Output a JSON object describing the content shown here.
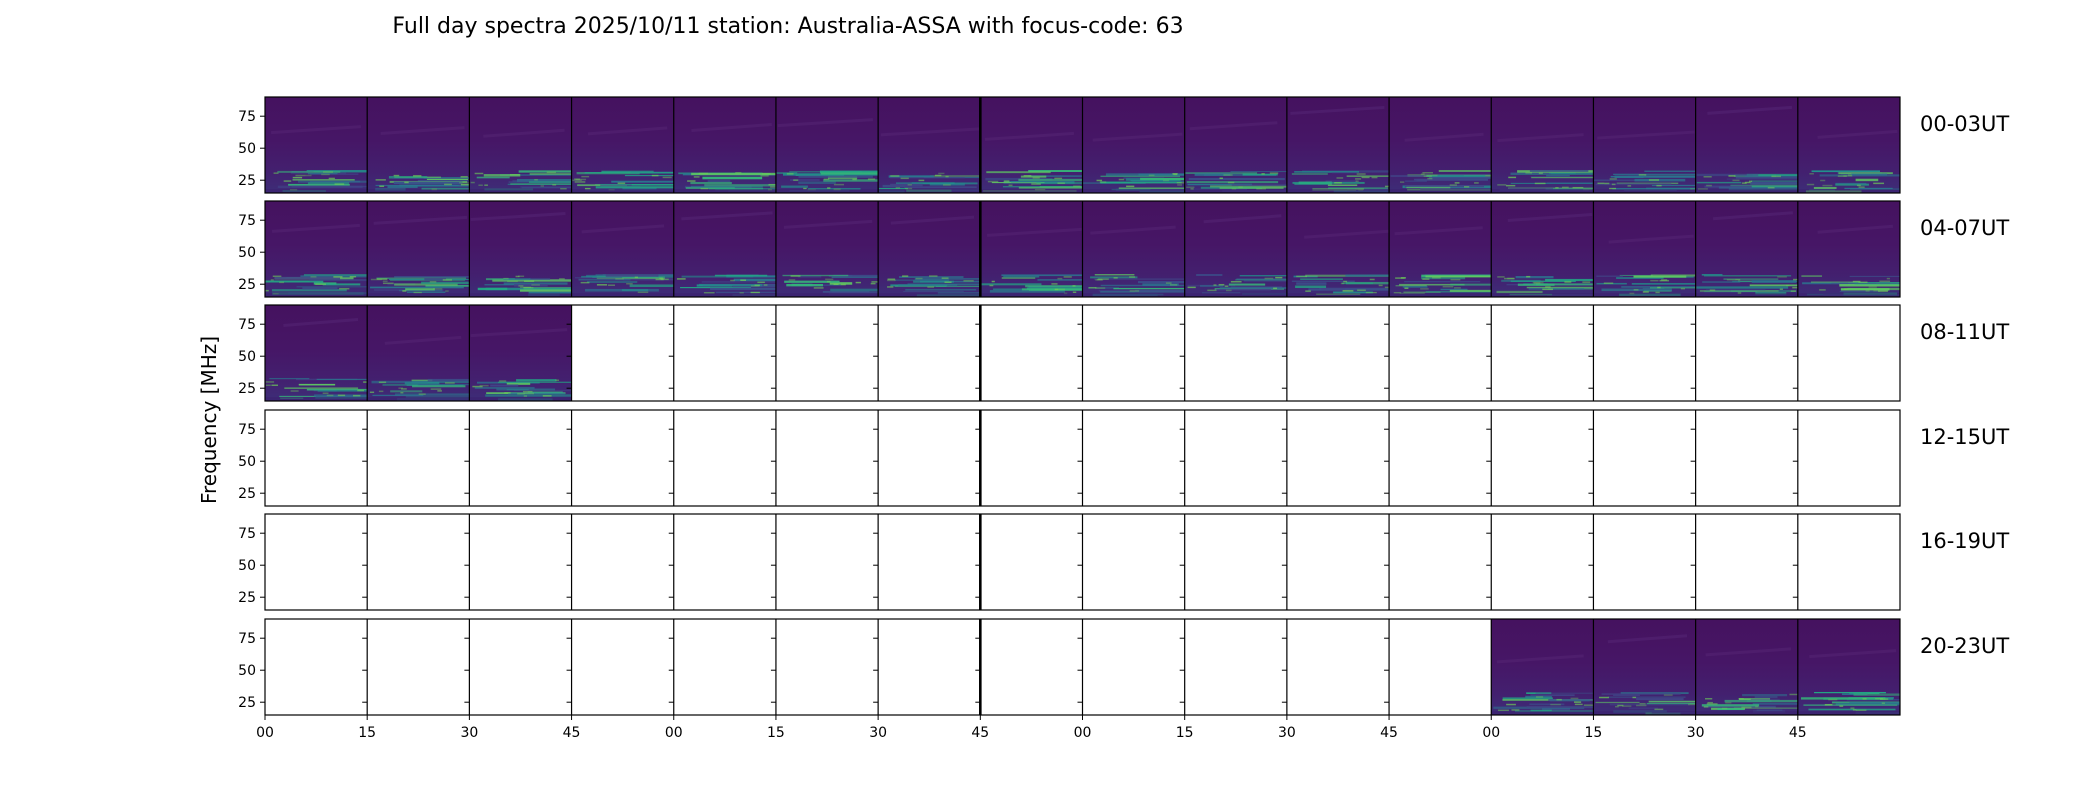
{
  "chart_data": {
    "type": "heatmap",
    "title": "Full day spectra 2025/10/11 station: Australia-ASSA with focus-code: 63",
    "ylabel": "Frequency [MHz]",
    "xlabel": "",
    "y_ticks": [
      "75",
      "50",
      "25"
    ],
    "y_tick_values": [
      75,
      50,
      25
    ],
    "ylim": [
      15,
      90
    ],
    "x_tick_labels": [
      "00",
      "15",
      "30",
      "45",
      "00",
      "15",
      "30",
      "45",
      "00",
      "15",
      "30",
      "45",
      "00",
      "15",
      "30",
      "45"
    ],
    "colormap": "viridis",
    "panels_per_row": 16,
    "panel_minutes": 15,
    "rows": [
      {
        "label": "00-03UT",
        "data_present": [
          true,
          true,
          true,
          true,
          true,
          true,
          true,
          true,
          true,
          true,
          true,
          true,
          true,
          true,
          true,
          true
        ]
      },
      {
        "label": "04-07UT",
        "data_present": [
          true,
          true,
          true,
          true,
          true,
          true,
          true,
          true,
          true,
          true,
          true,
          true,
          true,
          true,
          true,
          true
        ]
      },
      {
        "label": "08-11UT",
        "data_present": [
          true,
          true,
          true,
          false,
          false,
          false,
          false,
          false,
          false,
          false,
          false,
          false,
          false,
          false,
          false,
          false
        ]
      },
      {
        "label": "12-15UT",
        "data_present": [
          false,
          false,
          false,
          false,
          false,
          false,
          false,
          false,
          false,
          false,
          false,
          false,
          false,
          false,
          false,
          false
        ]
      },
      {
        "label": "16-19UT",
        "data_present": [
          false,
          false,
          false,
          false,
          false,
          false,
          false,
          false,
          false,
          false,
          false,
          false,
          false,
          false,
          false,
          false
        ]
      },
      {
        "label": "20-23UT",
        "data_present": [
          false,
          false,
          false,
          false,
          false,
          false,
          false,
          false,
          false,
          false,
          false,
          false,
          true,
          true,
          true,
          true
        ]
      }
    ]
  }
}
